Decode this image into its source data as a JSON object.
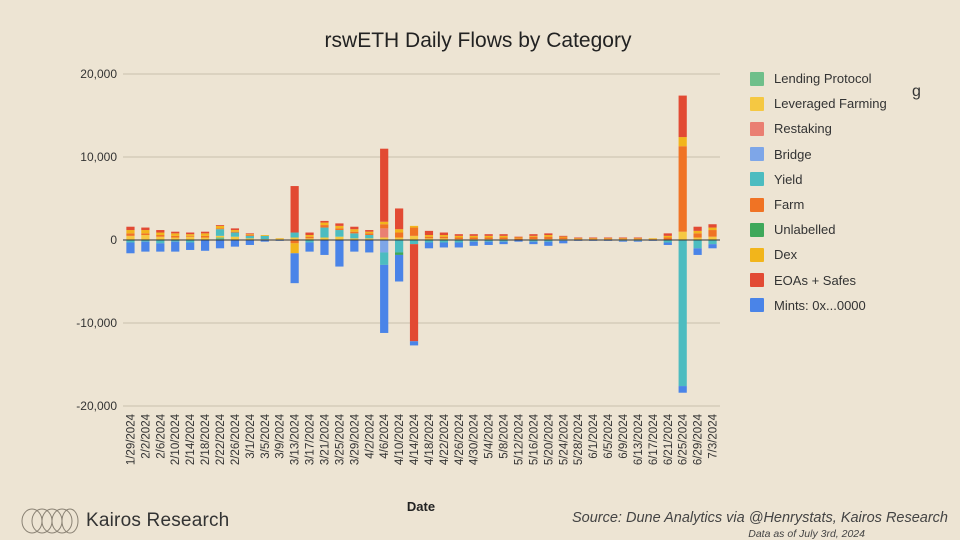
{
  "chart_data": {
    "type": "bar",
    "stacked": true,
    "title": "rswETH Daily Flows by Category",
    "xlabel": "Date",
    "ylabel": "",
    "ylim": [
      -20000,
      20000
    ],
    "yticks": [
      20000,
      10000,
      0,
      -10000,
      -20000
    ],
    "ytick_labels": [
      "20,000",
      "10,000",
      "0",
      "-10,000",
      "-20,000"
    ],
    "grid": true,
    "legend_position": "right",
    "categories": [
      "1/29/2024",
      "2/2/2024",
      "2/6/2024",
      "2/10/2024",
      "2/14/2024",
      "2/18/2024",
      "2/22/2024",
      "2/26/2024",
      "3/1/2024",
      "3/5/2024",
      "3/9/2024",
      "3/13/2024",
      "3/17/2024",
      "3/21/2024",
      "3/25/2024",
      "3/29/2024",
      "4/2/2024",
      "4/6/2024",
      "4/10/2024",
      "4/14/2024",
      "4/18/2024",
      "4/22/2024",
      "4/26/2024",
      "4/30/2024",
      "5/4/2024",
      "5/8/2024",
      "5/12/2024",
      "5/16/2024",
      "5/20/2024",
      "5/24/2024",
      "5/28/2024",
      "6/1/2024",
      "6/5/2024",
      "6/9/2024",
      "6/13/2024",
      "6/17/2024",
      "6/21/2024",
      "6/25/2024",
      "6/29/2024",
      "7/3/2024"
    ],
    "series": [
      {
        "name": "Lending Protocol",
        "color": "#6fbf8a",
        "values": [
          0,
          0,
          0,
          0,
          0,
          0,
          300,
          0,
          0,
          0,
          0,
          0,
          0,
          0,
          0,
          0,
          0,
          0,
          0,
          0,
          0,
          0,
          0,
          0,
          0,
          0,
          0,
          0,
          0,
          0,
          0,
          0,
          0,
          0,
          0,
          0,
          0,
          0,
          0,
          0
        ]
      },
      {
        "name": "Leveraged Farming",
        "color": "#f5c842",
        "values": [
          500,
          600,
          400,
          300,
          400,
          300,
          200,
          400,
          200,
          100,
          100,
          300,
          200,
          300,
          400,
          200,
          200,
          300,
          300,
          500,
          200,
          200,
          100,
          100,
          100,
          100,
          0,
          100,
          100,
          100,
          0,
          0,
          0,
          0,
          0,
          0,
          0,
          1000,
          300,
          400
        ]
      },
      {
        "name": "Restaking",
        "color": "#ea7f72",
        "values": [
          0,
          0,
          0,
          0,
          0,
          0,
          0,
          0,
          0,
          0,
          0,
          0,
          0,
          0,
          0,
          0,
          0,
          1100,
          0,
          0,
          0,
          0,
          0,
          0,
          0,
          0,
          0,
          0,
          0,
          0,
          0,
          0,
          0,
          0,
          0,
          0,
          0,
          0,
          0,
          0
        ]
      },
      {
        "name": "Bridge",
        "color": "#7ea6e8",
        "values": [
          0,
          0,
          0,
          0,
          0,
          0,
          0,
          0,
          0,
          0,
          0,
          0,
          0,
          0,
          0,
          0,
          0,
          -1500,
          0,
          0,
          0,
          0,
          0,
          0,
          0,
          0,
          0,
          0,
          0,
          0,
          0,
          0,
          0,
          0,
          0,
          0,
          0,
          0,
          0,
          0
        ]
      },
      {
        "name": "Yield",
        "color": "#4cbcc0",
        "values": [
          -300,
          -200,
          -400,
          -200,
          -300,
          0,
          800,
          500,
          300,
          400,
          0,
          600,
          -300,
          1200,
          800,
          600,
          400,
          -1500,
          -1500,
          -500,
          -300,
          -300,
          -300,
          -200,
          -200,
          -200,
          0,
          -200,
          -200,
          -100,
          0,
          0,
          0,
          -100,
          -100,
          0,
          -300,
          -17600,
          -1000,
          -500
        ]
      },
      {
        "name": "Farm",
        "color": "#f07324",
        "values": [
          300,
          200,
          200,
          200,
          100,
          200,
          100,
          100,
          100,
          0,
          0,
          -400,
          200,
          300,
          200,
          200,
          200,
          500,
          600,
          1000,
          200,
          200,
          200,
          200,
          200,
          200,
          200,
          300,
          300,
          200,
          100,
          100,
          100,
          100,
          100,
          100,
          300,
          10300,
          500,
          800
        ]
      },
      {
        "name": "Unlabelled",
        "color": "#3fa85a",
        "values": [
          0,
          0,
          0,
          0,
          0,
          0,
          0,
          0,
          0,
          0,
          0,
          0,
          0,
          0,
          0,
          0,
          0,
          0,
          -300,
          0,
          0,
          0,
          0,
          0,
          0,
          0,
          0,
          0,
          0,
          0,
          0,
          0,
          0,
          0,
          0,
          0,
          0,
          0,
          0,
          0
        ]
      },
      {
        "name": "Dex",
        "color": "#f2b51b",
        "values": [
          400,
          400,
          300,
          300,
          200,
          300,
          300,
          200,
          100,
          100,
          100,
          -1200,
          200,
          300,
          300,
          300,
          200,
          300,
          400,
          200,
          200,
          200,
          200,
          200,
          200,
          200,
          100,
          100,
          200,
          100,
          100,
          100,
          100,
          100,
          100,
          100,
          200,
          1100,
          300,
          300
        ]
      },
      {
        "name": "EOAs + Safes",
        "color": "#e24a33",
        "values": [
          400,
          300,
          300,
          200,
          200,
          200,
          100,
          200,
          100,
          0,
          0,
          5600,
          300,
          200,
          300,
          300,
          200,
          8800,
          2500,
          -11700,
          500,
          300,
          200,
          200,
          200,
          200,
          100,
          200,
          200,
          100,
          100,
          100,
          100,
          100,
          100,
          0,
          300,
          5000,
          500,
          400
        ]
      },
      {
        "name": "Mints: 0x...0000",
        "color": "#4a84e8",
        "values": [
          -1300,
          -1200,
          -1000,
          -1200,
          -900,
          -1300,
          -1000,
          -800,
          -600,
          -200,
          -100,
          -3600,
          -1100,
          -1800,
          -3200,
          -1400,
          -1500,
          -8200,
          -3200,
          -500,
          -700,
          -600,
          -600,
          -500,
          -400,
          -300,
          -200,
          -300,
          -500,
          -300,
          -100,
          -100,
          -100,
          -100,
          -100,
          -100,
          -300,
          -800,
          -800,
          -500
        ]
      }
    ]
  },
  "legend_stray_mark": "g",
  "footer": {
    "brand": "Kairos Research",
    "source": "Source: Dune Analytics via @Henrystats, Kairos Research",
    "as_of": "Data as of July 3rd, 2024"
  }
}
